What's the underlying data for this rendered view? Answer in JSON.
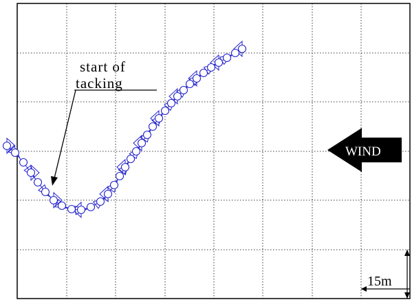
{
  "annotation": {
    "line1": "start of",
    "line2": "tacking"
  },
  "wind": {
    "label": "WIND",
    "arrow_color": "#000000",
    "text_color": "#ffffff"
  },
  "scale": {
    "label": "15m"
  },
  "trajectory": {
    "color": "#2222cc",
    "grid": true,
    "grid_style": "dotted",
    "description_markers": "circles"
  }
}
